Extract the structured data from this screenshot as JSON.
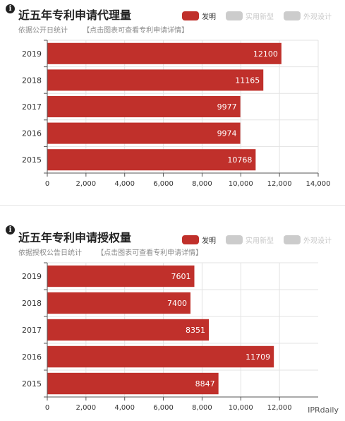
{
  "chart_data": [
    {
      "type": "bar",
      "orientation": "horizontal",
      "title": "近五年专利申请代理量",
      "subtitle": "依据公开日统计",
      "subtitle_link": "【点击图表可查看专利申请详情】",
      "legend": [
        {
          "label": "发明",
          "active": true
        },
        {
          "label": "实用新型",
          "active": false
        },
        {
          "label": "外观设计",
          "active": false
        }
      ],
      "categories": [
        "2019",
        "2018",
        "2017",
        "2016",
        "2015"
      ],
      "series": [
        {
          "name": "发明",
          "values": [
            12100,
            11165,
            9977,
            9974,
            10768
          ]
        }
      ],
      "value_labels": [
        "12100",
        "11165",
        "9977",
        "9974",
        "10768"
      ],
      "xlim": [
        0,
        14000
      ],
      "xticks": [
        0,
        2000,
        4000,
        6000,
        8000,
        10000,
        12000,
        14000
      ],
      "xtick_labels": [
        "0",
        "2,000",
        "4,000",
        "6,000",
        "8,000",
        "10,000",
        "12,000",
        "14,000"
      ],
      "grid": true
    },
    {
      "type": "bar",
      "orientation": "horizontal",
      "title": "近五年专利申请授权量",
      "subtitle": "依据授权公告日统计",
      "subtitle_link": "【点击图表可查看专利申请详情】",
      "legend": [
        {
          "label": "发明",
          "active": true
        },
        {
          "label": "实用新型",
          "active": false
        },
        {
          "label": "外观设计",
          "active": false
        }
      ],
      "categories": [
        "2019",
        "2018",
        "2017",
        "2016",
        "2015"
      ],
      "series": [
        {
          "name": "发明",
          "values": [
            7601,
            7400,
            8351,
            11709,
            8847
          ]
        }
      ],
      "value_labels": [
        "7601",
        "7400",
        "8351",
        "11709",
        "8847"
      ],
      "xlim": [
        0,
        14000
      ],
      "xticks": [
        0,
        2000,
        4000,
        6000,
        8000,
        10000,
        12000
      ],
      "xtick_labels": [
        "0",
        "2,000",
        "4,000",
        "6,000",
        "8,000",
        "10,000",
        "12,000"
      ],
      "grid": true
    }
  ],
  "info_glyph": "i",
  "watermark": "IPRdaily",
  "colors": {
    "bar": "#c0302b",
    "legend_active": "#c0302b",
    "legend_inactive": "#cccccc",
    "grid": "#e3e3e3",
    "axis": "#555555"
  }
}
